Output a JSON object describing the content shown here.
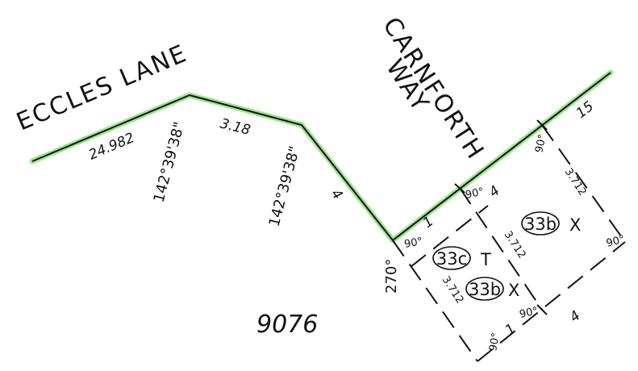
{
  "streets": {
    "eccles": "ECCLES LANE",
    "carnforth_1": "CARNFORTH",
    "carnforth_2": "WAY"
  },
  "dimensions": {
    "eccles_frontage": "24.982",
    "splay": "3.18",
    "diagonal": "4",
    "carnforth_short": "1",
    "carnforth_long": "15",
    "unit_top": "4",
    "unit_bottom": "4",
    "unit_right": "3.712",
    "unit_middle": "3.712",
    "unit_left": "3.712",
    "unit_short": "1"
  },
  "angles": {
    "bearing_1": "142°39'38\"",
    "bearing_2": "142°39'38\"",
    "a270": "270°",
    "a90_corner": "90°",
    "a90_top": "90°",
    "a90_middle": "90°",
    "a90_right": "90°",
    "a90_bottom": "90°",
    "a90_lower": "90°"
  },
  "units": {
    "u33b_upper": {
      "id": "33b",
      "mark": "X"
    },
    "u33c": {
      "id": "33c",
      "mark": "T"
    },
    "u33b_lower": {
      "id": "33b",
      "mark": "X"
    }
  },
  "lot_number": "9076",
  "colors": {
    "frontage_highlight": "#9ee68f",
    "line": "#111111"
  }
}
